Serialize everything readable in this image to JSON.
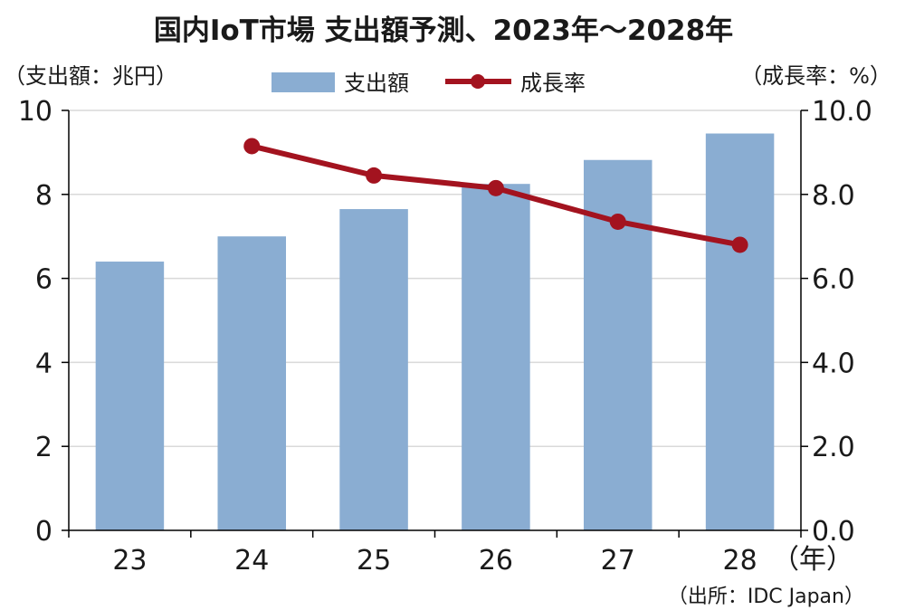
{
  "chart_data": {
    "type": "bar",
    "title": "国内IoT市場 支出額予測、2023年～2028年",
    "left_axis_unit": "（支出額：兆円）",
    "right_axis_unit": "（成長率：%）",
    "x_unit": "（年）",
    "source": "（出所：IDC Japan）",
    "categories": [
      "23",
      "24",
      "25",
      "26",
      "27",
      "28"
    ],
    "left_ylim": [
      0,
      10
    ],
    "left_ticks": [
      "0",
      "2",
      "4",
      "6",
      "8",
      "10"
    ],
    "right_ylim": [
      0,
      10
    ],
    "right_ticks": [
      "0.0",
      "2.0",
      "4.0",
      "6.0",
      "8.0",
      "10.0"
    ],
    "grid": true,
    "legend_position": "top-center",
    "series": [
      {
        "name": "支出額",
        "type": "bar",
        "axis": "left",
        "color": "#8aadd2",
        "values": [
          6.4,
          7.0,
          7.65,
          8.25,
          8.82,
          9.45
        ]
      },
      {
        "name": "成長率",
        "type": "line",
        "axis": "right",
        "color": "#a3131f",
        "values": [
          null,
          9.15,
          8.45,
          8.15,
          7.35,
          6.8
        ]
      }
    ]
  }
}
